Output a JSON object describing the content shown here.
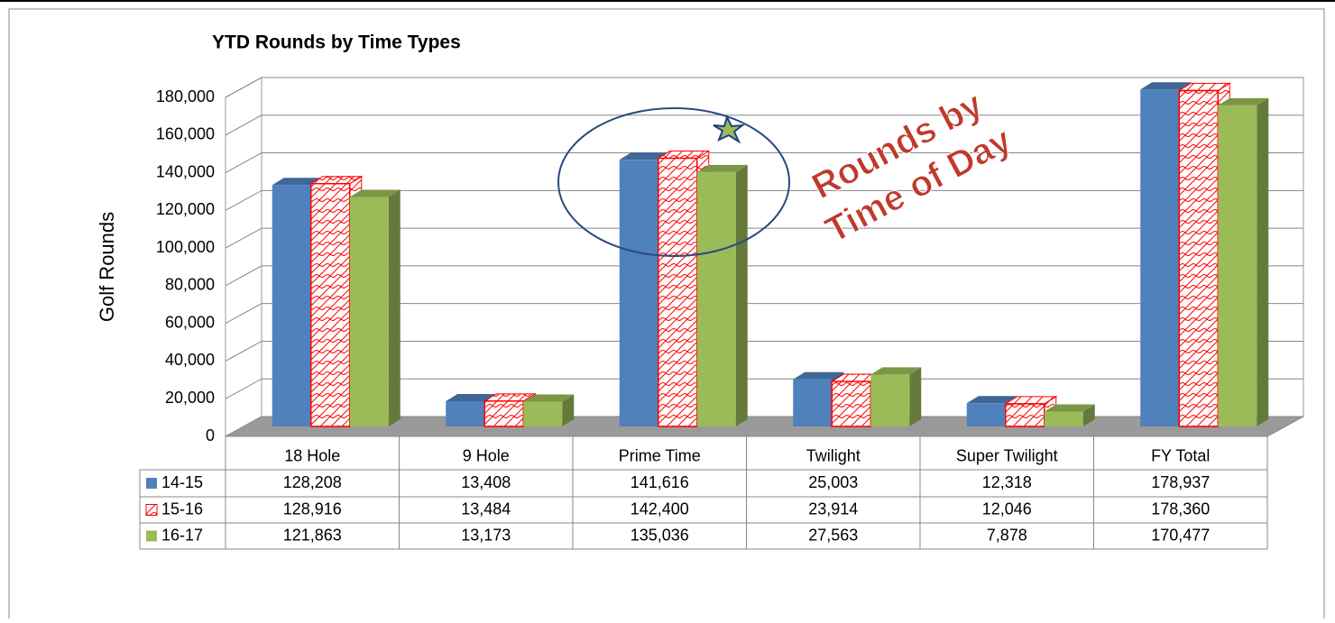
{
  "chart_data": {
    "type": "bar3d",
    "title": "YTD  Rounds by Time Types",
    "y_label": "Golf Rounds",
    "annotation": [
      "Rounds by",
      "Time of Day"
    ],
    "categories": [
      "18 Hole",
      "9 Hole",
      "Prime Time",
      "Twilight",
      "Super Twilight",
      "FY Total"
    ],
    "series": [
      {
        "name": "14-15",
        "color": "#4f81bd",
        "values": [
          128208,
          13408,
          141616,
          25003,
          12318,
          178937
        ],
        "value_labels": [
          "128,208",
          "13,408",
          "141,616",
          "25,003",
          "12,318",
          "178,937"
        ]
      },
      {
        "name": "15-16",
        "color": "#ff0000",
        "pattern": "hatch",
        "values": [
          128916,
          13484,
          142400,
          23914,
          12046,
          178360
        ],
        "value_labels": [
          "128,916",
          "13,484",
          "142,400",
          "23,914",
          "12,046",
          "178,360"
        ]
      },
      {
        "name": "16-17",
        "color": "#9bbb59",
        "values": [
          121863,
          13173,
          135036,
          27563,
          7878,
          170477
        ],
        "value_labels": [
          "121,863",
          "13,173",
          "135,036",
          "27,563",
          "7,878",
          "170,477"
        ]
      }
    ],
    "ylim": [
      0,
      180000
    ],
    "yticks": [
      0,
      {
        "value": 20000,
        "label": "20,000"
      },
      {
        "value": 40000,
        "label": "40,000"
      },
      {
        "value": 60000,
        "label": "60,000"
      },
      {
        "value": 80000,
        "label": "80,000"
      },
      {
        "value": 100000,
        "label": "100,000"
      },
      {
        "value": 120000,
        "label": "120,000"
      },
      {
        "value": 140000,
        "label": "140,000"
      },
      {
        "value": 160000,
        "label": "160,000"
      },
      {
        "value": 180000,
        "label": "180,000"
      }
    ],
    "grid": true
  }
}
